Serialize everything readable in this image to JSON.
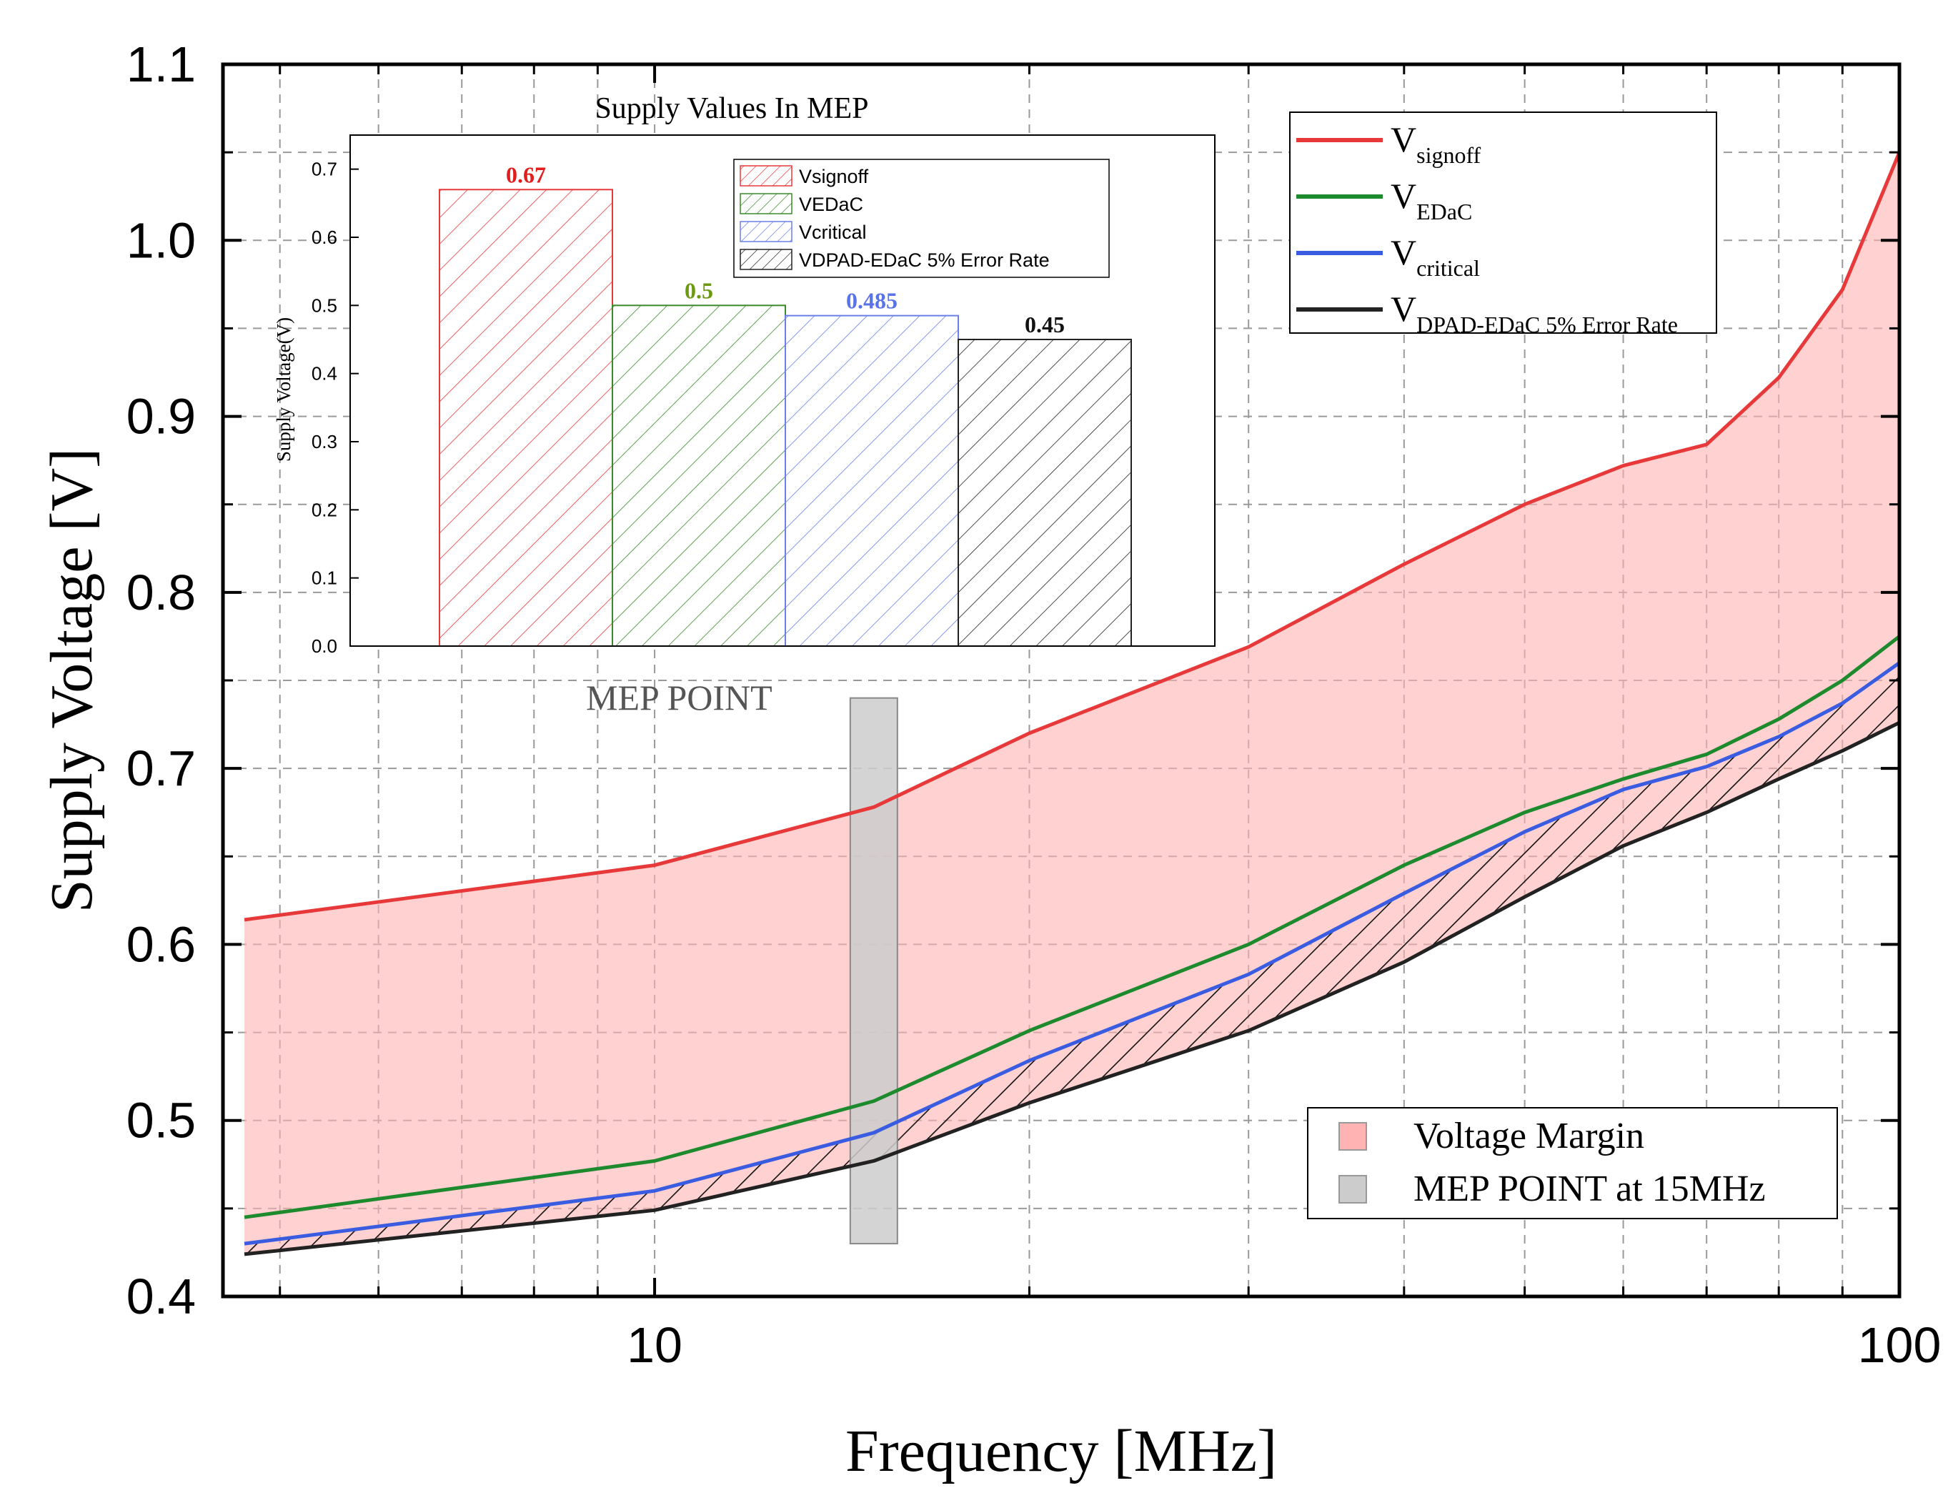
{
  "chart_data": [
    {
      "type": "line",
      "title": "",
      "xlabel": "Frequency [MHz]",
      "ylabel": "Supply Voltage [V]",
      "xscale": "log",
      "xlim": [
        4.5,
        100
      ],
      "ylim": [
        0.4,
        1.1
      ],
      "grid": true,
      "x_ticks": [
        {
          "value": 10,
          "label": "10"
        },
        {
          "value": 100,
          "label": "100"
        }
      ],
      "y_ticks": [
        {
          "value": 0.4,
          "label": "0.4"
        },
        {
          "value": 0.5,
          "label": "0.5"
        },
        {
          "value": 0.6,
          "label": "0.6"
        },
        {
          "value": 0.7,
          "label": "0.7"
        },
        {
          "value": 0.8,
          "label": "0.8"
        },
        {
          "value": 0.9,
          "label": "0.9"
        },
        {
          "value": 1.0,
          "label": "1.0"
        },
        {
          "value": 1.1,
          "label": "1.1"
        }
      ],
      "series": [
        {
          "key": "signoff",
          "name_main": "V",
          "name_sub": "signoff",
          "color": "#e8393a",
          "x": [
            5,
            10,
            15,
            20,
            30,
            40,
            50,
            60,
            70,
            80,
            90,
            100
          ],
          "y": [
            0.614,
            0.645,
            0.678,
            0.72,
            0.769,
            0.816,
            0.85,
            0.872,
            0.884,
            0.922,
            0.972,
            1.05
          ]
        },
        {
          "key": "edac",
          "name_main": "V",
          "name_sub": "EDaC",
          "color": "#1e8a2e",
          "x": [
            5,
            10,
            15,
            20,
            30,
            40,
            50,
            60,
            70,
            80,
            90,
            100
          ],
          "y": [
            0.445,
            0.477,
            0.511,
            0.551,
            0.6,
            0.645,
            0.675,
            0.694,
            0.708,
            0.728,
            0.75,
            0.775
          ]
        },
        {
          "key": "critical",
          "name_main": "V",
          "name_sub": "critical",
          "color": "#3a5ce0",
          "x": [
            5,
            10,
            15,
            20,
            30,
            40,
            50,
            60,
            70,
            80,
            90,
            100
          ],
          "y": [
            0.43,
            0.46,
            0.493,
            0.534,
            0.583,
            0.629,
            0.664,
            0.688,
            0.701,
            0.718,
            0.737,
            0.76
          ]
        },
        {
          "key": "dpad",
          "name_main": "V",
          "name_sub": "DPAD-EDaC 5% Error Rate",
          "color": "#222222",
          "x": [
            5,
            10,
            15,
            20,
            30,
            40,
            50,
            60,
            70,
            80,
            90,
            100
          ],
          "y": [
            0.424,
            0.449,
            0.477,
            0.51,
            0.551,
            0.59,
            0.627,
            0.656,
            0.675,
            0.694,
            0.71,
            0.726
          ]
        }
      ],
      "margin_fill": {
        "label": "Voltage Margin",
        "color": "#ffb3b3"
      },
      "mep": {
        "label": "MEP POINT at 15MHz",
        "annotation": "MEP POINT",
        "x": 15,
        "y_range": [
          0.43,
          0.74
        ],
        "color": "#cccccc"
      },
      "legend_position": "top-right"
    },
    {
      "type": "bar",
      "title": "Supply Values In MEP",
      "ylabel": "Supply Voltage(V)",
      "ylim": [
        0,
        0.75
      ],
      "y_ticks": [
        "0.0",
        "0.1",
        "0.2",
        "0.3",
        "0.4",
        "0.5",
        "0.6",
        "0.7"
      ],
      "categories": [
        "Vsignoff",
        "VEDaC",
        "Vcritical",
        "VDPAD-EDaC 5% Error Rate"
      ],
      "values": [
        0.67,
        0.5,
        0.485,
        0.45
      ],
      "value_labels": [
        "0.67",
        "0.5",
        "0.485",
        "0.45"
      ],
      "colors": [
        "#e8393a",
        "#3a8a2a",
        "#6a7fe8",
        "#222222"
      ],
      "label_colors": [
        "#e11d1d",
        "#6b9a12",
        "#5b73e8",
        "#111111"
      ],
      "legend_position": "top-right"
    }
  ]
}
